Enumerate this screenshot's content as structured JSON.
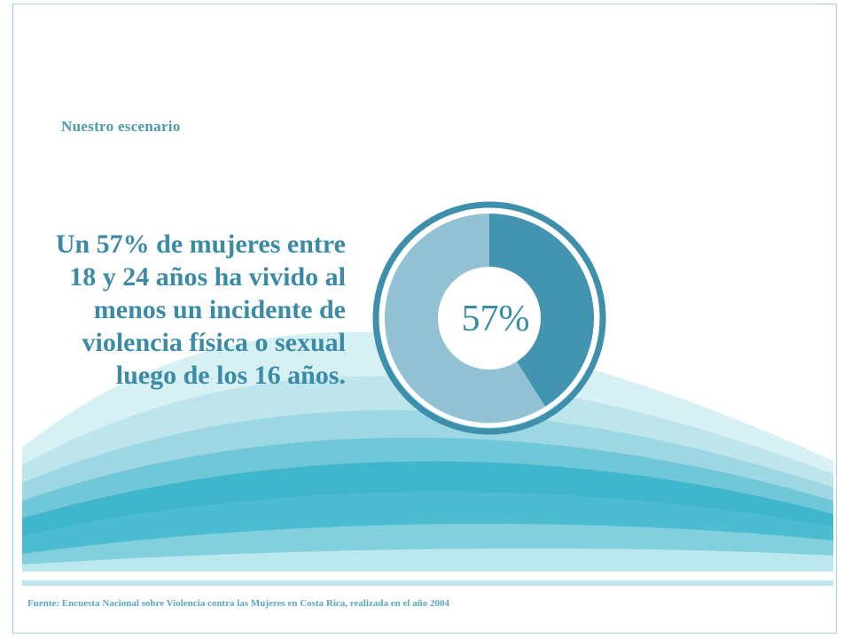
{
  "section_label": "Nuestro escenario",
  "statement": "Un 57% de mujeres entre 18 y 24 años ha vivido al menos un incidente de violencia física o sexual luego de los 16 años.",
  "source": "Fuente: Encuesta Nacional sobre Violencia contra las Mujeres en Costa Rica, realizada en el año 2004",
  "colors": {
    "primary": "#4294b0",
    "secondary": "#93c1d4",
    "ring": "#3d8fac",
    "text": "#3b8aa6",
    "wave_light": "#c6e9ef",
    "wave_dark": "#2fb0c8"
  },
  "chart_data": {
    "type": "pie",
    "subtype": "donut",
    "center_label": "57%",
    "slices": [
      {
        "value": 57
      },
      {
        "value": 43
      }
    ]
  }
}
